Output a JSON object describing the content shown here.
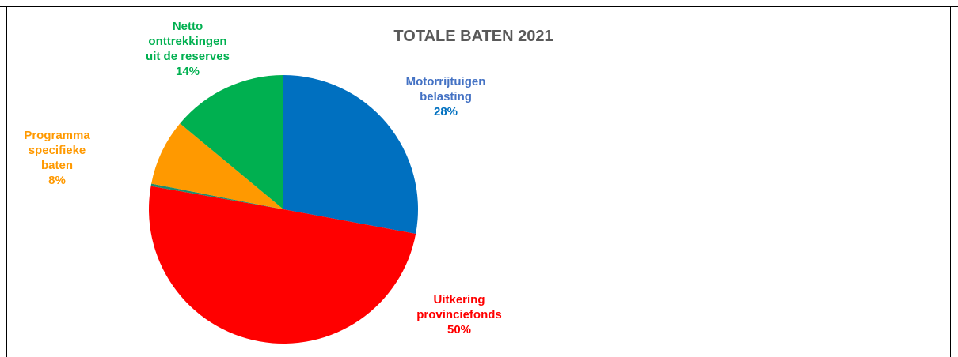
{
  "chart_data": {
    "type": "pie",
    "title": "TOTALE BATEN 2021",
    "categories": [
      "Motorrijtuigen\nbelasting",
      "Uitkering\nprovinciefonds",
      null,
      "Programma\nspecifieke\nbaten",
      "Netto\nonttrekkingen\nuit de reserves"
    ],
    "values": [
      28,
      50,
      0.3,
      8,
      14
    ],
    "value_labels": [
      "28%",
      "50%",
      null,
      "8%",
      "14%"
    ],
    "colors": [
      "#0070c0",
      "#ff0000",
      "#1e8c6e",
      "#ff9900",
      "#00b050"
    ]
  }
}
